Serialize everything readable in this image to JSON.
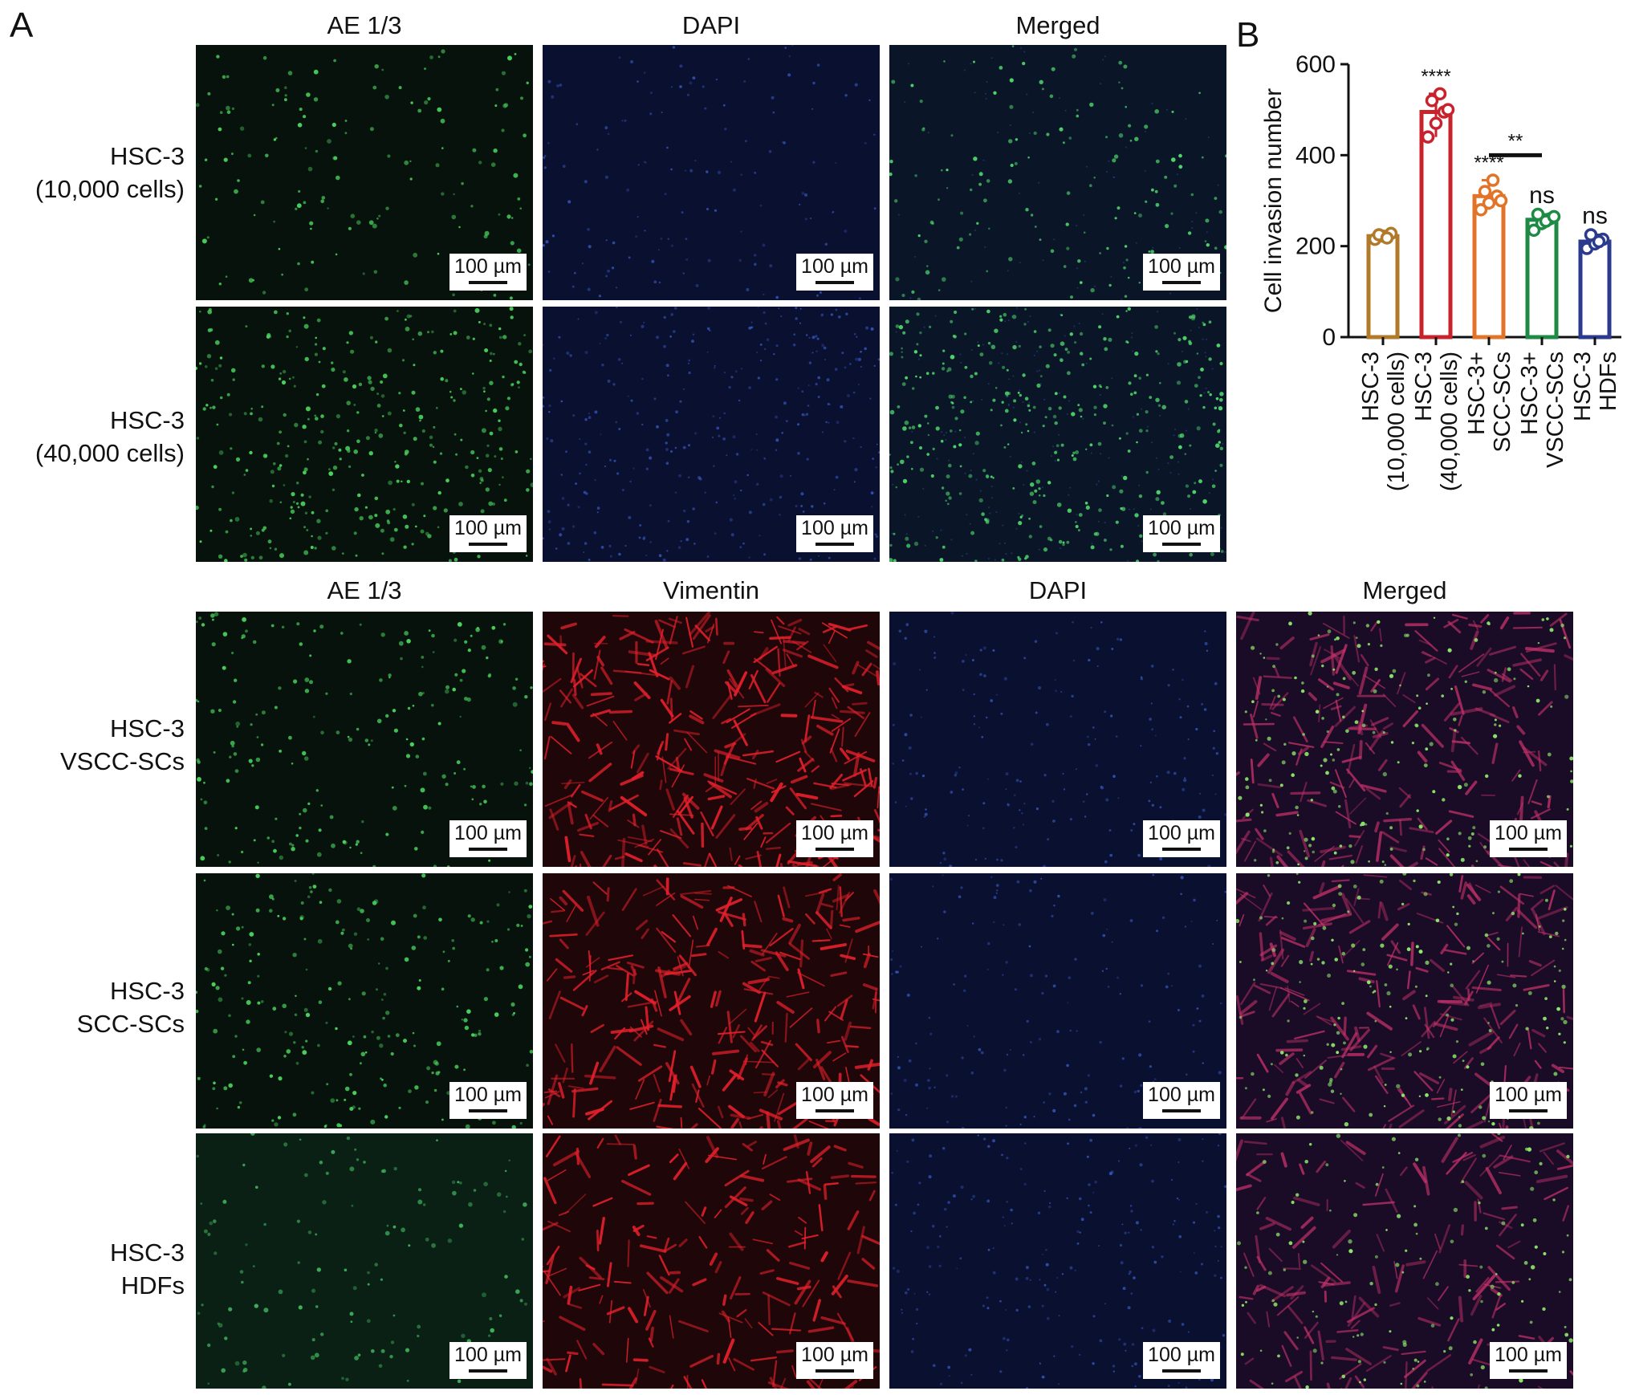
{
  "panel_a": {
    "letter": "A",
    "top_columns": [
      "AE 1/3",
      "DAPI",
      "Merged"
    ],
    "bottom_columns": [
      "AE 1/3",
      "Vimentin",
      "DAPI",
      "Merged"
    ],
    "top_rows": [
      "HSC-3\n(10,000 cells)",
      "HSC-3\n(40,000 cells)"
    ],
    "bottom_rows": [
      "HSC-3\nVSCC-SCs",
      "HSC-3\nSCC-SCs",
      "HSC-3\nHDFs"
    ],
    "scale_bar": "100 µm"
  },
  "panel_b": {
    "letter": "B"
  },
  "chart_data": {
    "type": "bar",
    "ylabel": "Cell invasion number",
    "ylim": [
      0,
      600
    ],
    "yticks": [
      0,
      200,
      400,
      600
    ],
    "categories": [
      "HSC-3\n(10,000 cells)",
      "HSC-3\n(40,000 cells)",
      "HSC-3+\nSCC-SCs",
      "HSC-3+\nVSCC-SCs",
      "HSC-3\nHDFs"
    ],
    "values": [
      222,
      495,
      310,
      258,
      210
    ],
    "points": [
      [
        215,
        222,
        228,
        225,
        218
      ],
      [
        440,
        470,
        495,
        520,
        535,
        500
      ],
      [
        280,
        295,
        310,
        320,
        345,
        300
      ],
      [
        235,
        250,
        260,
        270,
        255,
        265
      ],
      [
        195,
        205,
        215,
        225,
        210
      ]
    ],
    "colors": [
      "#b07a2a",
      "#c8232c",
      "#e2742a",
      "#1e8a45",
      "#2b3a8c"
    ],
    "significance": [
      "",
      "****",
      "****",
      "ns",
      "ns"
    ],
    "bracket": {
      "from": 2,
      "to": 3,
      "label": "**"
    }
  }
}
